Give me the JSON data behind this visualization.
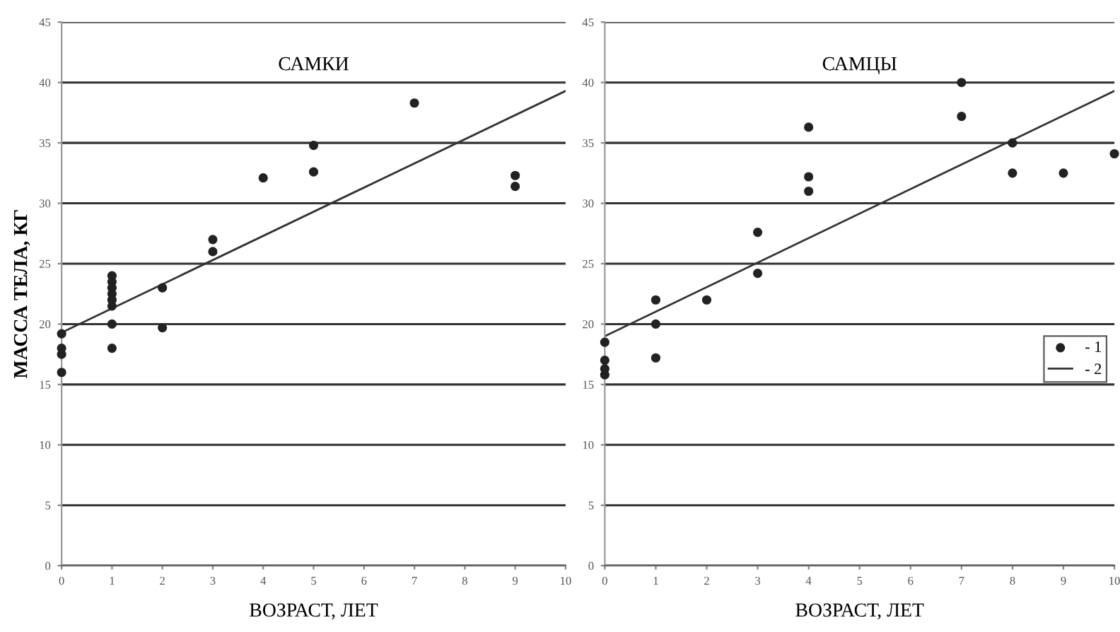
{
  "chart_data": [
    {
      "type": "scatter",
      "title": "САМКИ",
      "xlabel": "ВОЗРАСТ, ЛЕТ",
      "ylabel": "МАССА ТЕЛА, КГ",
      "xlim": [
        0,
        10
      ],
      "ylim": [
        0,
        45
      ],
      "xticks": [
        0,
        1,
        2,
        3,
        4,
        5,
        6,
        7,
        8,
        9,
        10
      ],
      "yticks": [
        0,
        5,
        10,
        15,
        20,
        25,
        30,
        35,
        40,
        45
      ],
      "grid": "y",
      "legend": false,
      "series": [
        {
          "marker": "circle",
          "color": "#222222",
          "x": [
            0,
            0,
            0,
            0,
            1,
            1,
            1,
            1,
            1,
            1,
            1,
            1,
            2,
            2,
            3,
            3,
            4,
            5,
            5,
            7,
            9,
            9
          ],
          "values": [
            19.2,
            18,
            17.5,
            16,
            24,
            23.5,
            23,
            22.5,
            22,
            21.5,
            20,
            18,
            23,
            19.7,
            27,
            26,
            32.1,
            34.8,
            32.6,
            38.3,
            32.3,
            31.4
          ]
        },
        {
          "type": "line",
          "color": "#333333",
          "x": [
            0,
            10
          ],
          "values": [
            19.3,
            39.3
          ]
        }
      ]
    },
    {
      "type": "scatter",
      "title": "САМЦЫ",
      "xlabel": "ВОЗРАСТ, ЛЕТ",
      "xlim": [
        0,
        10
      ],
      "ylim": [
        0,
        45
      ],
      "xticks": [
        0,
        1,
        2,
        3,
        4,
        5,
        6,
        7,
        8,
        9,
        10
      ],
      "yticks": [
        0,
        5,
        10,
        15,
        20,
        25,
        30,
        35,
        40,
        45
      ],
      "grid": "y",
      "legend": "right",
      "series": [
        {
          "marker": "circle",
          "name": "- 1",
          "color": "#222222",
          "x": [
            0,
            0,
            0,
            0,
            1,
            1,
            1,
            2,
            3,
            3,
            4,
            4,
            4,
            7,
            7,
            8,
            8,
            9,
            10
          ],
          "values": [
            18.5,
            17,
            16.3,
            15.8,
            22,
            20,
            17.2,
            22,
            27.6,
            24.2,
            36.3,
            32.2,
            31,
            40,
            37.2,
            35,
            32.5,
            32.5,
            34.1
          ]
        },
        {
          "type": "line",
          "name": "- 2",
          "color": "#333333",
          "x": [
            0,
            10
          ],
          "values": [
            19,
            39.3
          ]
        }
      ]
    }
  ]
}
